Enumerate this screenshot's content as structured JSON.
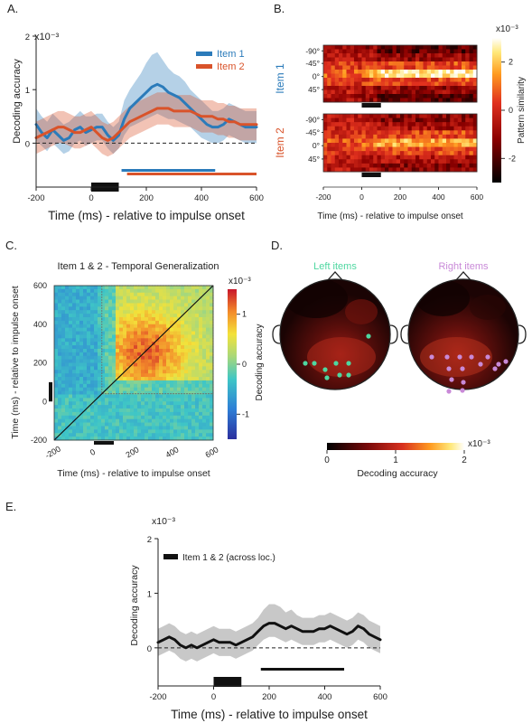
{
  "panels": {
    "a": {
      "letter": "A."
    },
    "b": {
      "letter": "B."
    },
    "c": {
      "letter": "C."
    },
    "d": {
      "letter": "D."
    },
    "e": {
      "letter": "E."
    }
  },
  "colors": {
    "item1": "#2b7bba",
    "item2": "#d9532a",
    "black": "#111111",
    "green_dots": "#4ed7a0",
    "purple_dots": "#c98ad8"
  },
  "chart_data": [
    {
      "id": "A",
      "type": "line",
      "title": "",
      "exponent_label": "x10⁻³",
      "xlabel": "Time (ms) - relative to impulse onset",
      "ylabel": "Decoding accuracy",
      "xlim": [
        -200,
        600
      ],
      "ylim": [
        -0.5,
        2.0
      ],
      "xticks": [
        -200,
        0,
        200,
        400,
        600
      ],
      "yticks": [
        0,
        1,
        2
      ],
      "legend_position": "top-right",
      "x": [
        -200,
        -180,
        -160,
        -140,
        -120,
        -100,
        -80,
        -60,
        -40,
        -20,
        0,
        20,
        40,
        60,
        80,
        100,
        120,
        140,
        160,
        180,
        200,
        220,
        240,
        260,
        280,
        300,
        320,
        340,
        360,
        380,
        400,
        420,
        440,
        460,
        480,
        500,
        520,
        540,
        560,
        580,
        600
      ],
      "series": [
        {
          "name": "Item 1",
          "color": "#2b7bba",
          "values": [
            0.35,
            0.2,
            0.1,
            0.25,
            0.15,
            0.05,
            0.1,
            0.25,
            0.3,
            0.2,
            0.25,
            0.3,
            0.3,
            0.15,
            0.05,
            0.15,
            0.45,
            0.65,
            0.75,
            0.85,
            0.95,
            1.05,
            1.1,
            1.05,
            0.95,
            0.9,
            0.85,
            0.75,
            0.65,
            0.55,
            0.45,
            0.35,
            0.3,
            0.3,
            0.35,
            0.45,
            0.4,
            0.35,
            0.3,
            0.3,
            0.3
          ],
          "lower": [
            0.05,
            -0.05,
            -0.15,
            0.0,
            -0.1,
            -0.2,
            -0.15,
            0.0,
            0.05,
            -0.05,
            0.0,
            0.05,
            0.05,
            -0.1,
            -0.2,
            -0.1,
            0.15,
            0.3,
            0.35,
            0.4,
            0.45,
            0.5,
            0.55,
            0.5,
            0.45,
            0.45,
            0.4,
            0.35,
            0.3,
            0.2,
            0.1,
            0.05,
            0.0,
            0.0,
            0.05,
            0.15,
            0.1,
            0.05,
            0.0,
            0.0,
            0.0
          ],
          "upper": [
            0.65,
            0.5,
            0.4,
            0.55,
            0.45,
            0.35,
            0.4,
            0.5,
            0.6,
            0.5,
            0.5,
            0.55,
            0.55,
            0.4,
            0.3,
            0.4,
            0.8,
            1.0,
            1.15,
            1.3,
            1.5,
            1.65,
            1.7,
            1.55,
            1.4,
            1.3,
            1.25,
            1.15,
            1.0,
            0.9,
            0.8,
            0.7,
            0.6,
            0.6,
            0.65,
            0.75,
            0.7,
            0.65,
            0.6,
            0.6,
            0.6
          ]
        },
        {
          "name": "Item 2",
          "color": "#d9532a",
          "values": [
            0.1,
            0.15,
            0.2,
            0.25,
            0.3,
            0.3,
            0.25,
            0.2,
            0.2,
            0.25,
            0.3,
            0.2,
            0.1,
            0.05,
            0.1,
            0.2,
            0.3,
            0.4,
            0.45,
            0.5,
            0.55,
            0.6,
            0.65,
            0.65,
            0.65,
            0.6,
            0.6,
            0.6,
            0.6,
            0.55,
            0.5,
            0.5,
            0.5,
            0.45,
            0.45,
            0.4,
            0.4,
            0.35,
            0.35,
            0.35,
            0.35
          ],
          "lower": [
            -0.2,
            -0.15,
            -0.1,
            -0.05,
            0.0,
            0.0,
            -0.05,
            -0.1,
            -0.1,
            -0.05,
            0.0,
            -0.1,
            -0.2,
            -0.25,
            -0.2,
            -0.1,
            0.0,
            0.1,
            0.15,
            0.2,
            0.25,
            0.3,
            0.35,
            0.35,
            0.35,
            0.3,
            0.3,
            0.3,
            0.3,
            0.25,
            0.2,
            0.2,
            0.2,
            0.15,
            0.15,
            0.1,
            0.1,
            0.05,
            0.05,
            0.05,
            0.05
          ],
          "upper": [
            0.4,
            0.45,
            0.5,
            0.55,
            0.6,
            0.6,
            0.55,
            0.5,
            0.5,
            0.55,
            0.6,
            0.5,
            0.4,
            0.35,
            0.4,
            0.5,
            0.6,
            0.7,
            0.75,
            0.8,
            0.85,
            0.9,
            0.95,
            0.95,
            0.95,
            0.9,
            0.9,
            0.9,
            0.9,
            0.85,
            0.8,
            0.8,
            0.8,
            0.75,
            0.75,
            0.7,
            0.7,
            0.65,
            0.65,
            0.65,
            0.65
          ]
        }
      ],
      "significance_bars": [
        {
          "series": "Item 1",
          "x_start": 110,
          "x_end": 450,
          "color": "#2b7bba"
        },
        {
          "series": "Item 2",
          "x_start": 130,
          "x_end": 600,
          "color": "#d9532a"
        }
      ],
      "impulse_window": [
        0,
        100
      ]
    },
    {
      "id": "B",
      "type": "heatmap",
      "xlabel": "Time (ms) - relative to impulse onset",
      "xlim": [
        -200,
        600
      ],
      "xticks": [
        -200,
        0,
        200,
        400,
        600
      ],
      "yticklabels": [
        "-90°",
        "-45°",
        "0°",
        "45°"
      ],
      "row_labels": [
        "Item 1",
        "Item 2"
      ],
      "row_label_colors": [
        "#2b7bba",
        "#d9532a"
      ],
      "colorbar": {
        "label": "Pattern similarity",
        "exponent_label": "x10⁻³",
        "range": [
          -3,
          3
        ],
        "ticks": [
          -2,
          0,
          2
        ]
      },
      "profile_item1": [
        -1.8,
        -1.0,
        0.6,
        2.6,
        0.6,
        -1.0,
        -1.8
      ],
      "profile_item2": [
        -1.2,
        -0.6,
        0.5,
        1.7,
        0.5,
        -0.6,
        -1.2
      ],
      "impulse_window": [
        0,
        100
      ]
    },
    {
      "id": "C",
      "type": "heatmap",
      "title": "Item 1 & 2 - Temporal Generalization",
      "xlabel": "Time (ms) - relative to impulse onset",
      "ylabel": "Time (ms) - relative to impulse onset",
      "xlim": [
        -200,
        600
      ],
      "ylim": [
        -200,
        600
      ],
      "xticks": [
        -200,
        0,
        200,
        400,
        600
      ],
      "yticks": [
        -200,
        0,
        200,
        400,
        600
      ],
      "colorbar": {
        "label": "Decoding accuracy",
        "exponent_label": "x10⁻³",
        "range": [
          -1.5,
          1.5
        ],
        "ticks": [
          -1,
          0,
          1
        ]
      },
      "impulse_window": [
        0,
        100
      ]
    },
    {
      "id": "D",
      "type": "heatmap",
      "topoplots": [
        {
          "title": "Left items",
          "title_color": "#4ed7a0"
        },
        {
          "title": "Right items",
          "title_color": "#c98ad8"
        }
      ],
      "colorbar": {
        "label": "Decoding accuracy",
        "exponent_label": "x10⁻³",
        "range": [
          0,
          2
        ],
        "ticks": [
          0,
          1,
          2
        ]
      }
    },
    {
      "id": "E",
      "type": "line",
      "exponent_label": "x10⁻³",
      "xlabel": "Time (ms) - relative to impulse onset",
      "ylabel": "Decoding accuracy",
      "xlim": [
        -200,
        600
      ],
      "ylim": [
        -0.4,
        2.0
      ],
      "xticks": [
        -200,
        0,
        200,
        400,
        600
      ],
      "yticks": [
        0,
        1,
        2
      ],
      "legend_position": "top-left",
      "x": [
        -200,
        -180,
        -160,
        -140,
        -120,
        -100,
        -80,
        -60,
        -40,
        -20,
        0,
        20,
        40,
        60,
        80,
        100,
        120,
        140,
        160,
        180,
        200,
        220,
        240,
        260,
        280,
        300,
        320,
        340,
        360,
        380,
        400,
        420,
        440,
        460,
        480,
        500,
        520,
        540,
        560,
        580,
        600
      ],
      "series": [
        {
          "name": "Item 1 & 2 (across loc.)",
          "color": "#111111",
          "values": [
            0.1,
            0.15,
            0.2,
            0.15,
            0.05,
            0.0,
            0.05,
            0.0,
            0.05,
            0.1,
            0.15,
            0.1,
            0.1,
            0.1,
            0.05,
            0.1,
            0.15,
            0.2,
            0.3,
            0.4,
            0.45,
            0.45,
            0.4,
            0.35,
            0.4,
            0.35,
            0.3,
            0.3,
            0.3,
            0.35,
            0.35,
            0.4,
            0.35,
            0.3,
            0.25,
            0.3,
            0.4,
            0.35,
            0.25,
            0.2,
            0.15
          ],
          "lower": [
            -0.15,
            -0.1,
            -0.05,
            -0.1,
            -0.2,
            -0.25,
            -0.2,
            -0.25,
            -0.2,
            -0.15,
            -0.1,
            -0.15,
            -0.15,
            -0.15,
            -0.2,
            -0.15,
            -0.1,
            -0.05,
            0.05,
            0.15,
            0.2,
            0.2,
            0.15,
            0.1,
            0.15,
            0.1,
            0.05,
            0.05,
            0.05,
            0.1,
            0.1,
            0.15,
            0.1,
            0.05,
            0.0,
            0.05,
            0.15,
            0.1,
            0.0,
            -0.05,
            -0.1
          ],
          "upper": [
            0.35,
            0.4,
            0.45,
            0.4,
            0.3,
            0.25,
            0.3,
            0.25,
            0.3,
            0.35,
            0.4,
            0.35,
            0.35,
            0.35,
            0.3,
            0.35,
            0.4,
            0.45,
            0.55,
            0.7,
            0.8,
            0.8,
            0.75,
            0.65,
            0.7,
            0.6,
            0.55,
            0.55,
            0.55,
            0.6,
            0.6,
            0.65,
            0.6,
            0.55,
            0.5,
            0.55,
            0.65,
            0.6,
            0.5,
            0.45,
            0.4
          ]
        }
      ],
      "significance_bars": [
        {
          "series": "Item 1 & 2 (across loc.)",
          "x_start": 170,
          "x_end": 470,
          "color": "#111111"
        }
      ],
      "impulse_window": [
        0,
        100
      ]
    }
  ]
}
